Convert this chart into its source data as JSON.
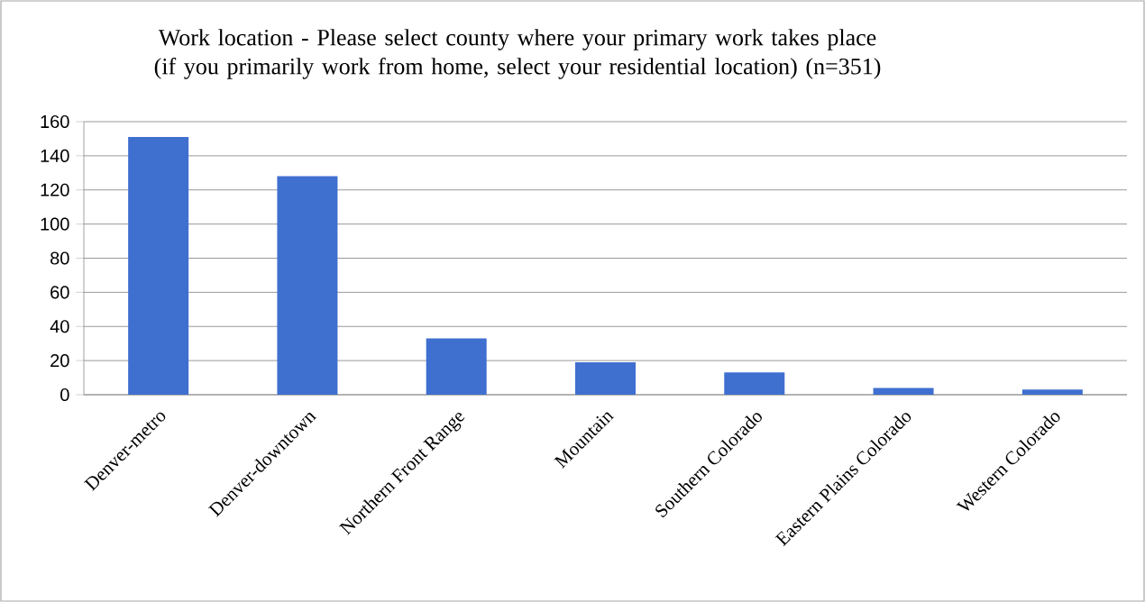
{
  "chart_data": {
    "type": "bar",
    "title": "Work location - Please select county where your primary work takes place (if you primarily work from home, select your residential location) (n=351)",
    "categories": [
      "Denver-metro",
      "Denver-downtown",
      "Northern Front Range",
      "Mountain",
      "Southern Colorado",
      "Eastern Plains Colorado",
      "Western Colorado"
    ],
    "values": [
      151,
      128,
      33,
      19,
      13,
      4,
      3
    ],
    "color": "#3f6fcf",
    "ylim": [
      0,
      160
    ],
    "yticks": [
      0,
      20,
      40,
      60,
      80,
      100,
      120,
      140,
      160
    ],
    "grid": "y"
  }
}
